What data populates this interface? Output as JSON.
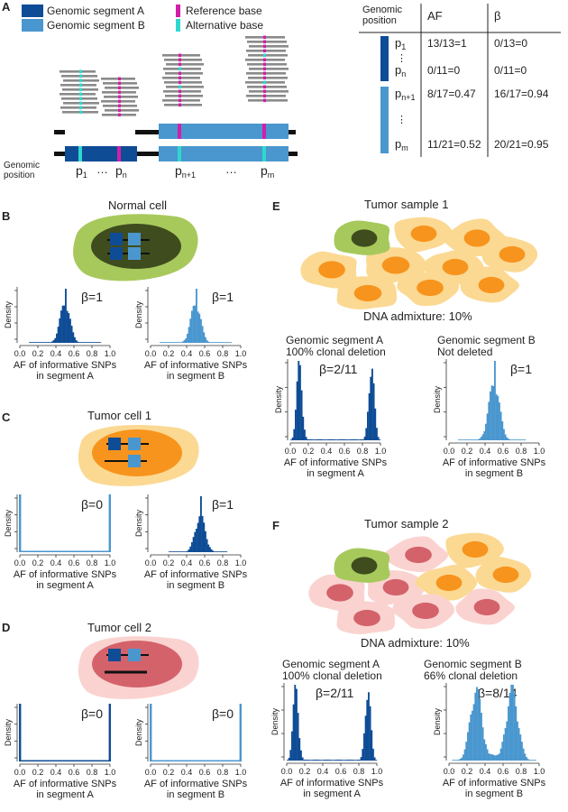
{
  "panel_letters": {
    "a": "A",
    "b": "B",
    "c": "C",
    "d": "D",
    "e": "E",
    "f": "F"
  },
  "legend": {
    "seg_a": "Genomic segment A",
    "seg_b": "Genomic segment B",
    "ref": "Reference base",
    "alt": "Alternative base"
  },
  "colors": {
    "seg_a": "#0f4c96",
    "seg_b": "#4a97cf",
    "ref": "#d21ea8",
    "alt": "#2fd8cf",
    "normal_outer": "#a7c95c",
    "normal_nucleus": "#3f4c1e",
    "tumor1_outer": "#fbd993",
    "tumor1_nucleus": "#f7941d",
    "tumor2_outer": "#fad3d0",
    "tumor2_nucleus": "#d4626b",
    "read": "#8a8a8a"
  },
  "genome": {
    "label_line1": "Genomic",
    "label_line2": "position",
    "p1": "p",
    "p1_sub": "1",
    "pn": "p",
    "pn_sub": "n",
    "pn1": "p",
    "pn1_sub": "n+1",
    "pm": "p",
    "pm_sub": "m",
    "dots1": "…",
    "dots2": "…"
  },
  "table": {
    "header_pos_line1": "Genomic",
    "header_pos_line2": "position",
    "header_af": "AF",
    "header_beta": "β",
    "rows": [
      {
        "pos": "p",
        "sub": "1",
        "af": "13/13=1",
        "beta": "0/13=0"
      },
      {
        "pos": "p",
        "sub": "n",
        "af": "0/11=0",
        "beta": "0/11=0"
      },
      {
        "pos": "p",
        "sub": "n+1",
        "af": "8/17=0.47",
        "beta": "16/17=0.94"
      },
      {
        "pos": "p",
        "sub": "m",
        "af": "11/21=0.52",
        "beta": "20/21=0.95"
      }
    ],
    "vdots": "⋮"
  },
  "panel_b": {
    "title": "Normal cell"
  },
  "panel_c": {
    "title": "Tumor cell 1"
  },
  "panel_d": {
    "title": "Tumor cell 2"
  },
  "panel_e": {
    "title": "Tumor sample 1",
    "admixture": "DNA admixture: 10%",
    "left_line1": "Genomic segment A",
    "left_line2": "100% clonal deletion",
    "right_line1": "Genomic segment B",
    "right_line2": "Not deleted"
  },
  "panel_f": {
    "title": "Tumor sample 2",
    "admixture": "DNA admixture: 10%",
    "left_line1": "Genomic segment A",
    "left_line2": "100% clonal deletion",
    "right_line1": "Genomic segment B",
    "right_line2": "66% clonal  deletion"
  },
  "hist_common": {
    "ylabel": "Density",
    "xlabel_line1": "AF of informative SNPs",
    "ticks": [
      "0.0",
      "0.2",
      "0.4",
      "0.6",
      "0.8",
      "1.0"
    ]
  },
  "histograms": [
    {
      "id": "b_left",
      "segment_label": "in segment A",
      "beta": "β=1",
      "color": "seg_a",
      "shape": "normal",
      "mean": 0.5,
      "sd": 0.055,
      "range": [
        0.1,
        0.9
      ]
    },
    {
      "id": "b_right",
      "segment_label": "in segment B",
      "beta": "β=1",
      "color": "seg_b",
      "shape": "normal",
      "mean": 0.5,
      "sd": 0.055,
      "range": [
        0.1,
        0.9
      ]
    },
    {
      "id": "c_left",
      "segment_label": "in segment A",
      "beta": "β=0",
      "color": "seg_b",
      "shape": "edges"
    },
    {
      "id": "c_right",
      "segment_label": "in segment B",
      "beta": "β=1",
      "color": "seg_a",
      "shape": "normal",
      "mean": 0.55,
      "sd": 0.055,
      "range": [
        0.2,
        0.85
      ]
    },
    {
      "id": "d_left",
      "segment_label": "in segment A",
      "beta": "β=0",
      "color": "seg_a",
      "shape": "edges"
    },
    {
      "id": "d_right",
      "segment_label": "in segment B",
      "beta": "β=0",
      "color": "seg_b",
      "shape": "edges"
    },
    {
      "id": "e_left",
      "segment_label": "in segment A",
      "beta": "β=2/11",
      "color": "seg_a",
      "shape": "bimodal",
      "peaks": [
        0.1,
        0.9
      ],
      "sd": 0.03,
      "weights": [
        1,
        1
      ]
    },
    {
      "id": "e_right",
      "segment_label": "in segment B",
      "beta": "β=1",
      "color": "seg_b",
      "shape": "normal",
      "mean": 0.5,
      "sd": 0.06,
      "range": [
        0.1,
        0.85
      ]
    },
    {
      "id": "f_left",
      "segment_label": "in segment A",
      "beta": "β=2/11",
      "color": "seg_a",
      "shape": "bimodal",
      "peaks": [
        0.1,
        0.9
      ],
      "sd": 0.03,
      "weights": [
        1,
        1
      ]
    },
    {
      "id": "f_right",
      "segment_label": "in segment B",
      "beta": "β=8/14",
      "color": "seg_b",
      "shape": "bimodal",
      "peaks": [
        0.3,
        0.7
      ],
      "sd": 0.065,
      "weights": [
        0.35,
        0.35
      ],
      "floor": 0.03
    }
  ]
}
